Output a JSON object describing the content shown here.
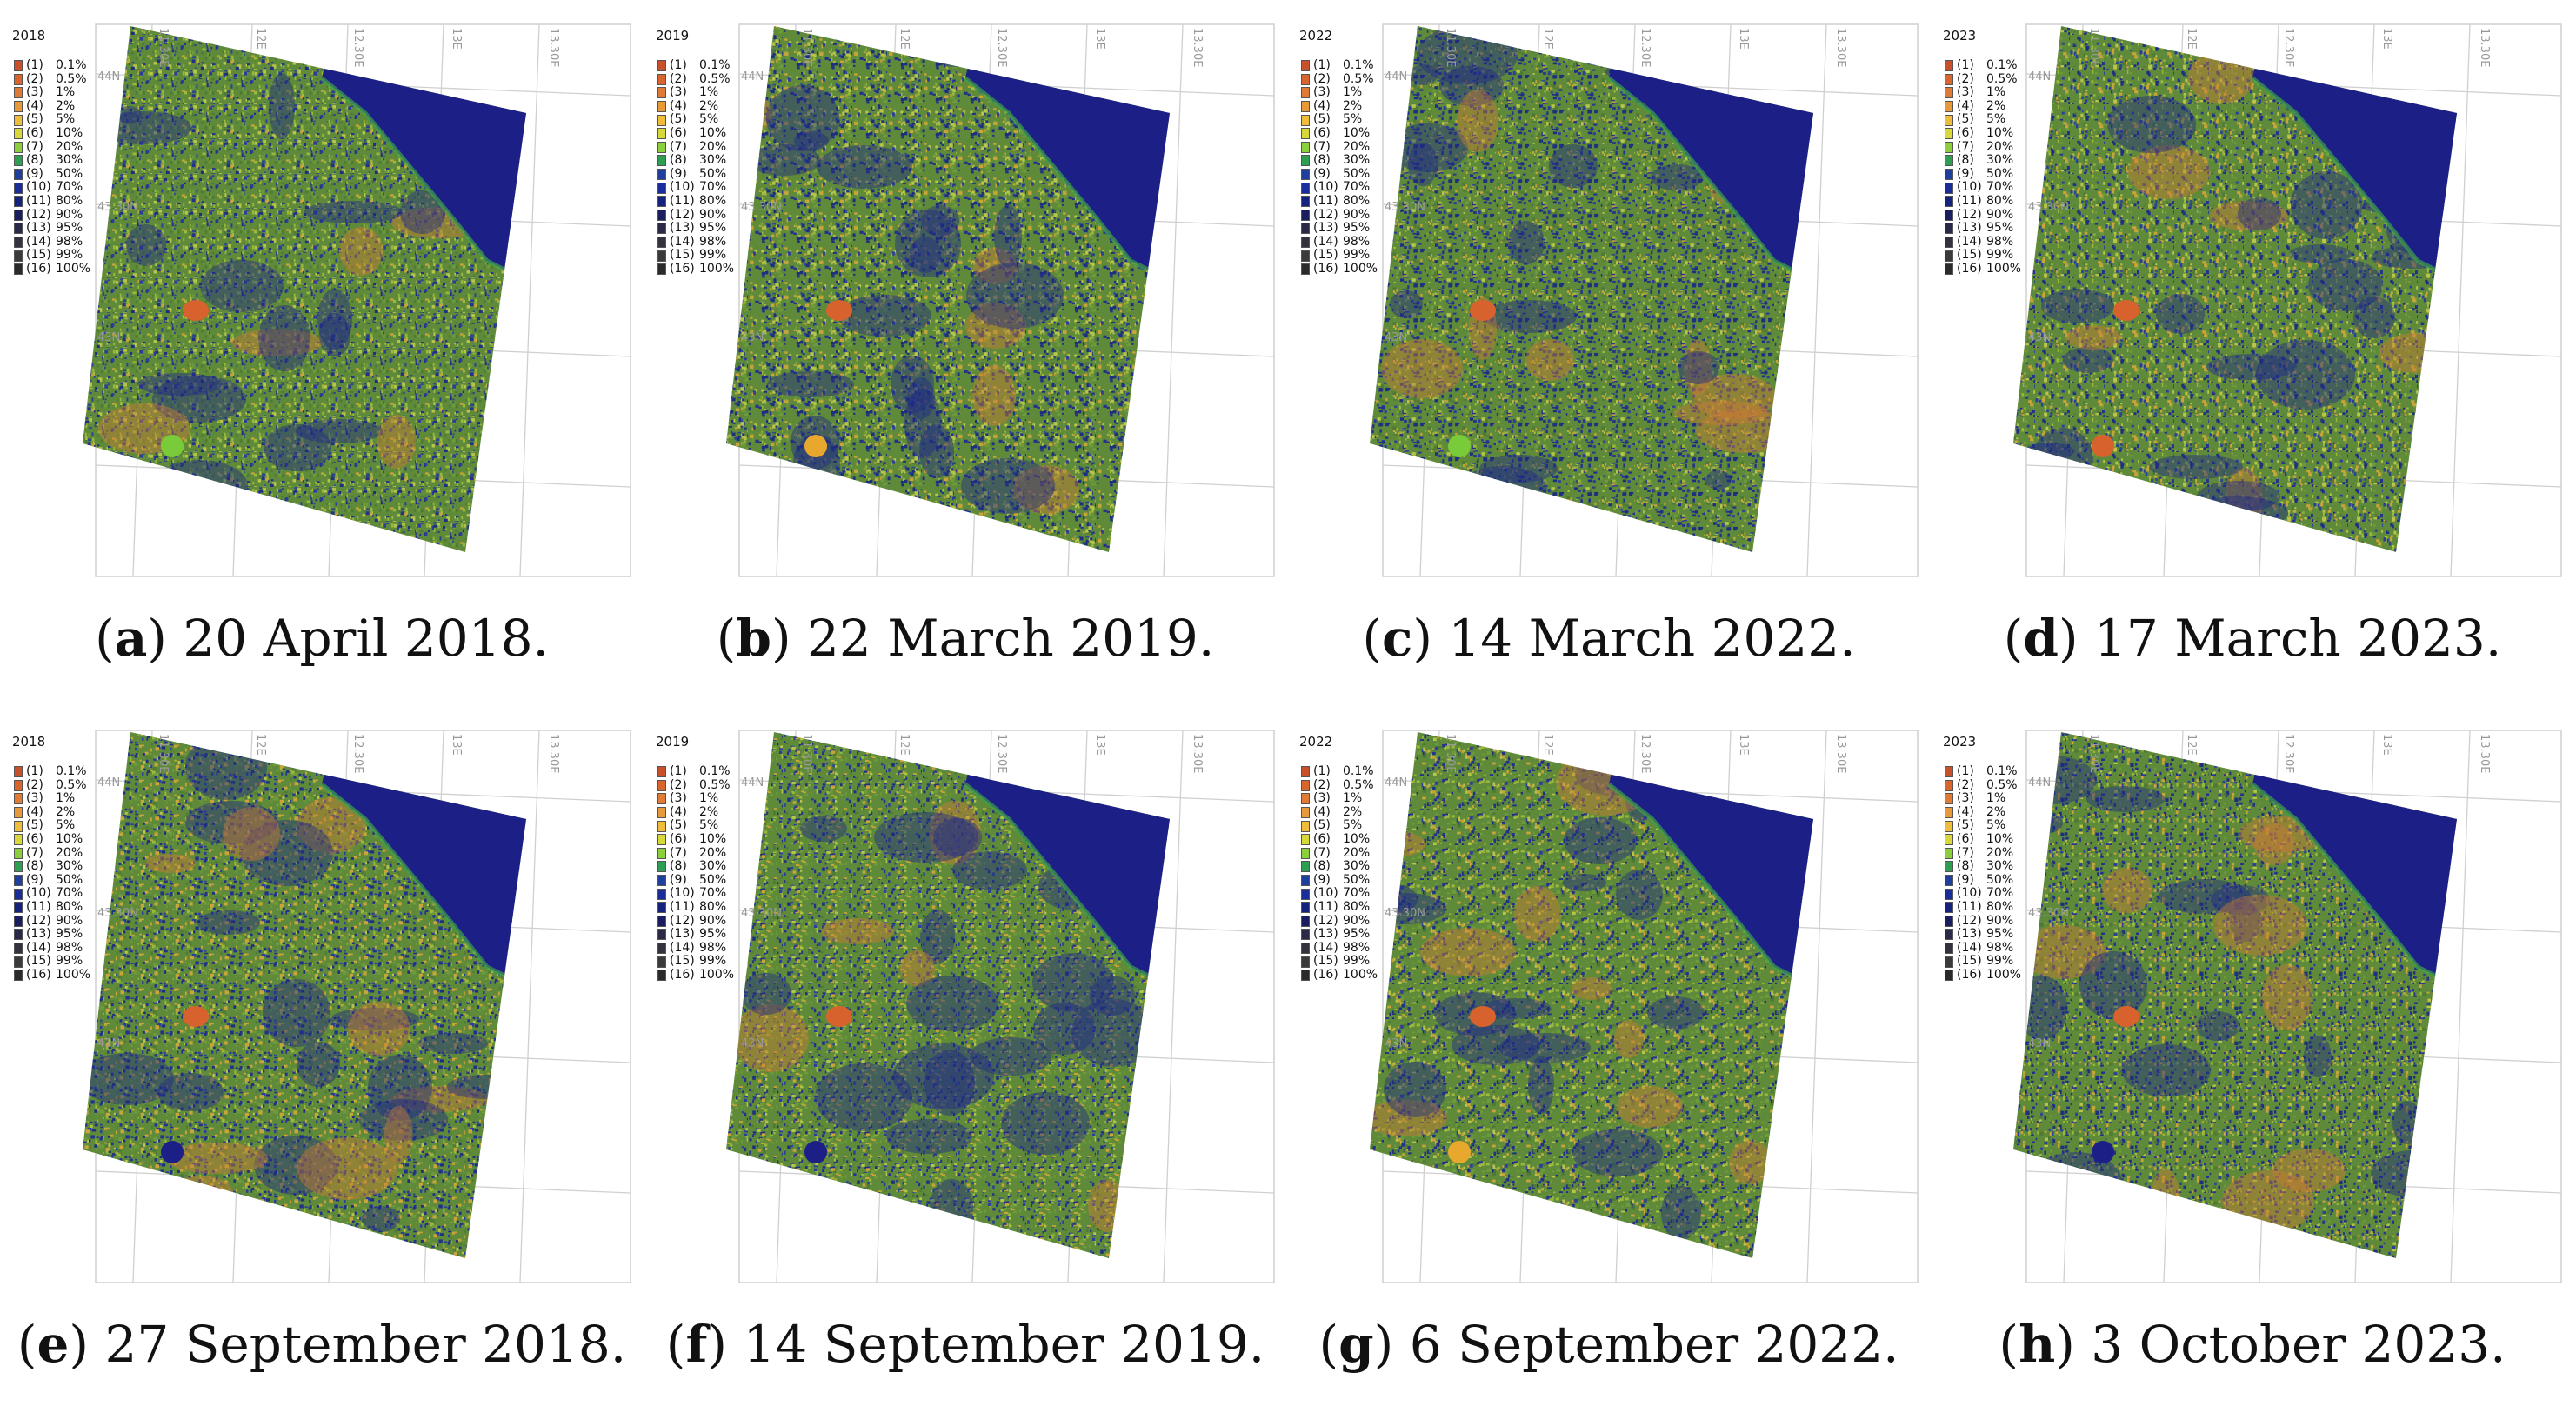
{
  "panels": [
    {
      "letter": "a",
      "caption": " 20 April 2018.",
      "year": "2018",
      "variant": 0
    },
    {
      "letter": "b",
      "caption": " 22 March 2019.",
      "year": "2019",
      "variant": 1
    },
    {
      "letter": "c",
      "caption": " 14 March 2022.",
      "year": "2022",
      "variant": 2
    },
    {
      "letter": "d",
      "caption": " 17 March 2023.",
      "year": "2023",
      "variant": 3
    },
    {
      "letter": "e",
      "caption": " 27 September 2018.",
      "year": "2018",
      "variant": 4
    },
    {
      "letter": "f",
      "caption": " 14 September 2019.",
      "year": "2019",
      "variant": 5
    },
    {
      "letter": "g",
      "caption": " 6 September 2022.",
      "year": "2022",
      "variant": 6
    },
    {
      "letter": "h",
      "caption": " 3 October 2023.",
      "year": "2023",
      "variant": 7
    }
  ],
  "legend": [
    {
      "code": "(1)",
      "value": "0.1%",
      "color": "#c8502a"
    },
    {
      "code": "(2)",
      "value": "0.5%",
      "color": "#d9652e"
    },
    {
      "code": "(3)",
      "value": "1%",
      "color": "#e07a34"
    },
    {
      "code": "(4)",
      "value": "2%",
      "color": "#e89a3a"
    },
    {
      "code": "(5)",
      "value": "5%",
      "color": "#eebd3c"
    },
    {
      "code": "(6)",
      "value": "10%",
      "color": "#d7d93a"
    },
    {
      "code": "(7)",
      "value": "20%",
      "color": "#8ccf3c"
    },
    {
      "code": "(8)",
      "value": "30%",
      "color": "#2e9e52"
    },
    {
      "code": "(9)",
      "value": "50%",
      "color": "#1f3f9c"
    },
    {
      "code": "(10)",
      "value": "70%",
      "color": "#1a2d9a"
    },
    {
      "code": "(11)",
      "value": "80%",
      "color": "#16237c"
    },
    {
      "code": "(12)",
      "value": "90%",
      "color": "#1a1d5e"
    },
    {
      "code": "(13)",
      "value": "95%",
      "color": "#2a2a48"
    },
    {
      "code": "(14)",
      "value": "98%",
      "color": "#333340"
    },
    {
      "code": "(15)",
      "value": "99%",
      "color": "#3a3a3a"
    },
    {
      "code": "(16)",
      "value": "100%",
      "color": "#2a2a2a"
    }
  ],
  "grid_labels": {
    "lon": [
      "11.30E",
      "12E",
      "12.30E",
      "13E",
      "13.30E"
    ],
    "lat": [
      "44N",
      "43.30N",
      "43N"
    ]
  },
  "colors": {
    "sea": "#1b1f86",
    "land_base": "#5f8a3a",
    "lake_orange": "#d8622e",
    "lake_dark": "#1b1f86",
    "lake_green": "#7acb3a",
    "lake_yellow": "#e8a82e"
  }
}
